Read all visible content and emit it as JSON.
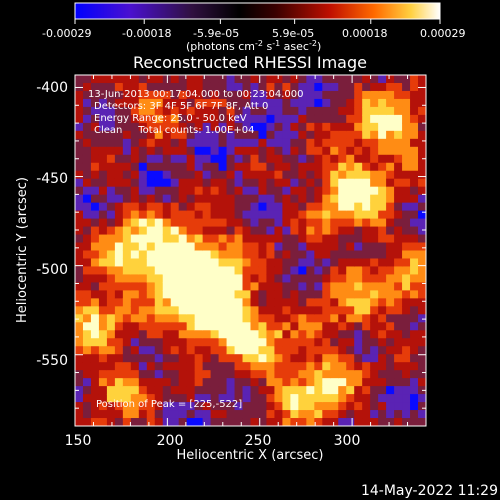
{
  "colorbar": {
    "ticks": [
      "-0.00029",
      "-0.00018",
      "-5.9e-05",
      "5.9e-05",
      "0.00018",
      "0.00029"
    ],
    "range": [
      -0.00029,
      0.00029
    ],
    "units_main": "(photons cm",
    "units_exp1": "-2",
    "units_mid": " s",
    "units_exp2": "-1",
    "units_end": " asec",
    "units_exp3": "-2",
    "units_close": ")"
  },
  "chart_data": {
    "type": "heatmap",
    "title": "Reconstructed RHESSI Image",
    "xlabel": "Heliocentric X (arcsec)",
    "ylabel": "Heliocentric Y (arcsec)",
    "xlim": [
      150,
      340
    ],
    "ylim": [
      -590,
      -393
    ],
    "xticks": [
      "150",
      "200",
      "250",
      "300"
    ],
    "yticks": [
      "-400",
      "-450",
      "-500",
      "-550"
    ],
    "info_lines": [
      "13-Jun-2013 00:17:04.000  to 00:23:04.000",
      "Detectors: 3F 4F 5F 6F 7F 8F, Att 0",
      "Energy Range: 25.0 - 50.0 keV",
      "Clean     Total counts: 1.00E+04"
    ],
    "peak_label": "Position of Peak = [225,-522]",
    "peak": [
      225,
      -522
    ],
    "colormap": [
      "#0a0aff",
      "#5a23b4",
      "#7a1e3c",
      "#b4120a",
      "#e63c0a",
      "#ff8c14",
      "#ffd23c",
      "#ffffc8"
    ]
  },
  "footer": {
    "timestamp": "14-May-2022 11:29"
  }
}
